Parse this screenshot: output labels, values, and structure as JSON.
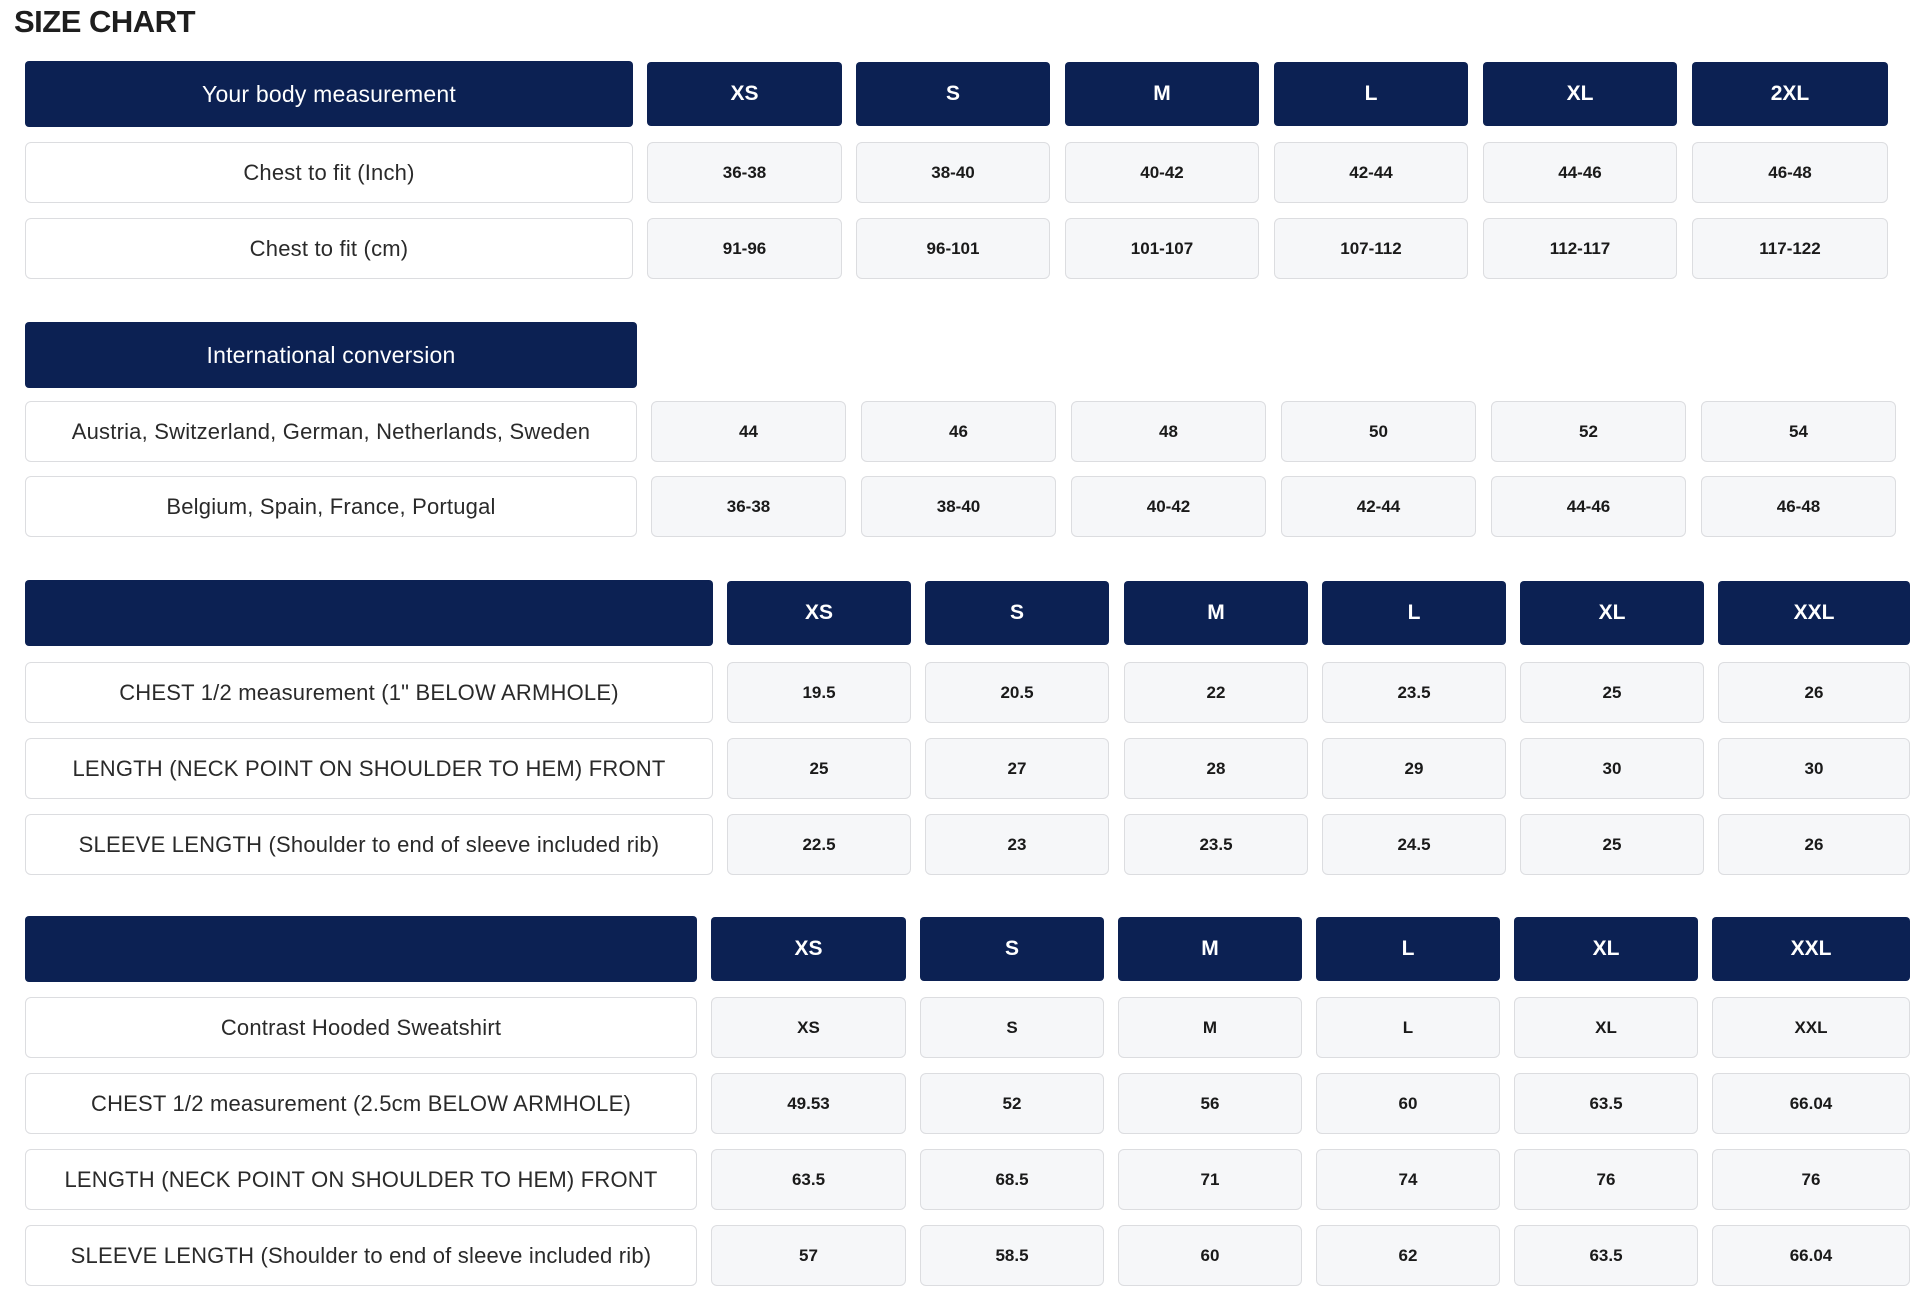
{
  "title": "SIZE CHART",
  "body_measurement": {
    "header_label": "Your body measurement",
    "sizes": [
      "XS",
      "S",
      "M",
      "L",
      "XL",
      "2XL"
    ],
    "rows": [
      {
        "label": "Chest to fit (Inch)",
        "values": [
          "36-38",
          "38-40",
          "40-42",
          "42-44",
          "44-46",
          "46-48"
        ]
      },
      {
        "label": "Chest to fit (cm)",
        "values": [
          "91-96",
          "96-101",
          "101-107",
          "107-112",
          "112-117",
          "117-122"
        ]
      }
    ]
  },
  "international_conversion": {
    "header_label": "International conversion",
    "rows": [
      {
        "label": "Austria, Switzerland, German, Netherlands, Sweden",
        "values": [
          "44",
          "46",
          "48",
          "50",
          "52",
          "54"
        ]
      },
      {
        "label": "Belgium, Spain, France, Portugal",
        "values": [
          "36-38",
          "38-40",
          "40-42",
          "42-44",
          "44-46",
          "46-48"
        ]
      }
    ]
  },
  "garment_inch": {
    "header_label": "",
    "sizes": [
      "XS",
      "S",
      "M",
      "L",
      "XL",
      "XXL"
    ],
    "rows": [
      {
        "label": "CHEST 1/2 measurement (1\" BELOW ARMHOLE)",
        "values": [
          "19.5",
          "20.5",
          "22",
          "23.5",
          "25",
          "26"
        ]
      },
      {
        "label": "LENGTH (NECK POINT ON SHOULDER TO HEM) FRONT",
        "values": [
          "25",
          "27",
          "28",
          "29",
          "30",
          "30"
        ]
      },
      {
        "label": "SLEEVE LENGTH (Shoulder to end of sleeve included rib)",
        "values": [
          "22.5",
          "23",
          "23.5",
          "24.5",
          "25",
          "26"
        ]
      }
    ]
  },
  "garment_cm": {
    "header_label": "",
    "sizes": [
      "XS",
      "S",
      "M",
      "L",
      "XL",
      "XXL"
    ],
    "rows": [
      {
        "label": "Contrast Hooded Sweatshirt",
        "values": [
          "XS",
          "S",
          "M",
          "L",
          "XL",
          "XXL"
        ]
      },
      {
        "label": "CHEST 1/2 measurement (2.5cm BELOW ARMHOLE)",
        "values": [
          "49.53",
          "52",
          "56",
          "60",
          "63.5",
          "66.04"
        ]
      },
      {
        "label": "LENGTH (NECK POINT ON SHOULDER TO HEM) FRONT",
        "values": [
          "63.5",
          "68.5",
          "71",
          "74",
          "76",
          "76"
        ]
      },
      {
        "label": "SLEEVE LENGTH (Shoulder to end of sleeve included rib)",
        "values": [
          "57",
          "58.5",
          "60",
          "62",
          "63.5",
          "66.04"
        ]
      }
    ]
  },
  "colors": {
    "header_navy": "#0c2153",
    "cell_gray": "#f6f7f9",
    "border": "#dcdde0"
  }
}
